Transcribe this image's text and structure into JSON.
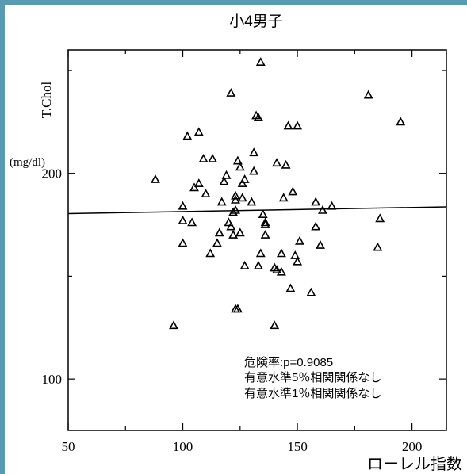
{
  "chart_data": {
    "type": "scatter",
    "title": "小4男子",
    "ylabel": "T.Chol",
    "yunit": "(mg/dl)",
    "xlabel": "ローレル指数",
    "xlim": [
      50,
      215
    ],
    "ylim": [
      75,
      260
    ],
    "xticks": [
      50,
      100,
      150,
      200
    ],
    "yticks": [
      100,
      200
    ],
    "marker": "triangle",
    "grid": false,
    "points": [
      [
        88,
        197
      ],
      [
        96,
        126
      ],
      [
        100,
        184
      ],
      [
        100,
        177
      ],
      [
        100,
        166
      ],
      [
        102,
        218
      ],
      [
        104,
        176
      ],
      [
        105,
        193
      ],
      [
        107,
        195
      ],
      [
        107,
        220
      ],
      [
        109,
        207
      ],
      [
        110,
        190
      ],
      [
        112,
        161
      ],
      [
        113,
        207
      ],
      [
        115,
        166
      ],
      [
        116,
        171
      ],
      [
        117,
        186
      ],
      [
        118,
        196
      ],
      [
        119,
        199
      ],
      [
        120,
        176
      ],
      [
        121,
        174
      ],
      [
        121,
        239
      ],
      [
        122,
        170
      ],
      [
        122,
        181
      ],
      [
        123,
        182
      ],
      [
        123,
        187
      ],
      [
        123,
        189
      ],
      [
        123,
        134
      ],
      [
        124,
        134
      ],
      [
        124,
        206
      ],
      [
        125,
        203
      ],
      [
        125,
        171
      ],
      [
        126,
        188
      ],
      [
        126,
        195
      ],
      [
        127,
        197
      ],
      [
        127,
        155
      ],
      [
        130,
        186
      ],
      [
        131,
        210
      ],
      [
        131,
        201
      ],
      [
        132,
        228
      ],
      [
        133,
        155
      ],
      [
        133,
        227
      ],
      [
        134,
        161
      ],
      [
        134,
        254
      ],
      [
        135,
        180
      ],
      [
        136,
        175
      ],
      [
        136,
        176
      ],
      [
        136,
        170
      ],
      [
        140,
        126
      ],
      [
        140,
        154
      ],
      [
        141,
        153
      ],
      [
        141,
        205
      ],
      [
        143,
        161
      ],
      [
        143,
        152
      ],
      [
        144,
        188
      ],
      [
        145,
        204
      ],
      [
        146,
        223
      ],
      [
        147,
        144
      ],
      [
        148,
        191
      ],
      [
        149,
        160
      ],
      [
        150,
        157
      ],
      [
        150,
        223
      ],
      [
        151,
        167
      ],
      [
        156,
        142
      ],
      [
        158,
        174
      ],
      [
        158,
        186
      ],
      [
        160,
        165
      ],
      [
        161,
        182
      ],
      [
        165,
        184
      ],
      [
        181,
        238
      ],
      [
        185,
        164
      ],
      [
        186,
        178
      ],
      [
        195,
        225
      ]
    ],
    "regression": {
      "x": [
        50,
        215
      ],
      "y": [
        180.4,
        183.7
      ]
    },
    "annotations": [
      "危険率:p=0.9085",
      "有意水準5％相関関係なし",
      "有意水準1％相関関係なし"
    ]
  }
}
